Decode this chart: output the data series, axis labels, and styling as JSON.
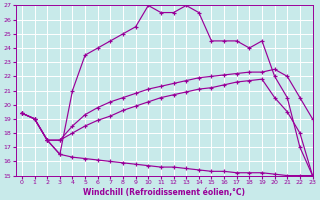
{
  "xlabel": "Windchill (Refroidissement éolien,°C)",
  "bg_color": "#c8eaea",
  "grid_color": "#ffffff",
  "line_color": "#990099",
  "xlim": [
    -0.5,
    23
  ],
  "ylim": [
    15,
    27
  ],
  "xticks": [
    0,
    1,
    2,
    3,
    4,
    5,
    6,
    7,
    8,
    9,
    10,
    11,
    12,
    13,
    14,
    15,
    16,
    17,
    18,
    19,
    20,
    21,
    22,
    23
  ],
  "yticks": [
    15,
    16,
    17,
    18,
    19,
    20,
    21,
    22,
    23,
    24,
    25,
    26,
    27
  ],
  "lines": [
    {
      "x": [
        0,
        1,
        2,
        3,
        4,
        5,
        6,
        7,
        8,
        9,
        10,
        11,
        12,
        13,
        14,
        15,
        16,
        17,
        18,
        19,
        20,
        21,
        22,
        23
      ],
      "y": [
        19.4,
        19.0,
        17.5,
        16.5,
        16.3,
        16.2,
        16.1,
        16.0,
        15.9,
        15.8,
        15.7,
        15.6,
        15.6,
        15.5,
        15.4,
        15.3,
        15.3,
        15.2,
        15.2,
        15.2,
        15.1,
        15.0,
        15.0,
        15.0
      ]
    },
    {
      "x": [
        0,
        1,
        2,
        3,
        4,
        5,
        6,
        7,
        8,
        9,
        10,
        11,
        12,
        13,
        14,
        15,
        16,
        17,
        18,
        19,
        20,
        21,
        22,
        23
      ],
      "y": [
        19.4,
        19.0,
        17.5,
        17.5,
        18.0,
        18.5,
        18.9,
        19.2,
        19.6,
        19.9,
        20.2,
        20.5,
        20.7,
        20.9,
        21.1,
        21.2,
        21.4,
        21.6,
        21.7,
        21.8,
        20.5,
        19.5,
        18.0,
        15.0
      ]
    },
    {
      "x": [
        0,
        1,
        2,
        3,
        4,
        5,
        6,
        7,
        8,
        9,
        10,
        11,
        12,
        13,
        14,
        15,
        16,
        17,
        18,
        19,
        20,
        21,
        22,
        23
      ],
      "y": [
        19.4,
        19.0,
        17.5,
        17.5,
        18.5,
        19.3,
        19.8,
        20.2,
        20.5,
        20.8,
        21.1,
        21.3,
        21.5,
        21.7,
        21.9,
        22.0,
        22.1,
        22.2,
        22.3,
        22.3,
        22.5,
        22.0,
        20.5,
        19.0
      ]
    },
    {
      "x": [
        0,
        1,
        2,
        3,
        4,
        5,
        6,
        7,
        8,
        9,
        10,
        11,
        12,
        13,
        14,
        15,
        16,
        17,
        18,
        19,
        20,
        21,
        22,
        23
      ],
      "y": [
        19.4,
        19.0,
        17.5,
        16.5,
        21.0,
        23.5,
        24.0,
        24.5,
        25.0,
        25.5,
        27.0,
        26.5,
        26.5,
        27.0,
        26.5,
        24.5,
        24.5,
        24.5,
        24.0,
        24.5,
        22.0,
        20.5,
        17.0,
        15.0
      ]
    }
  ]
}
